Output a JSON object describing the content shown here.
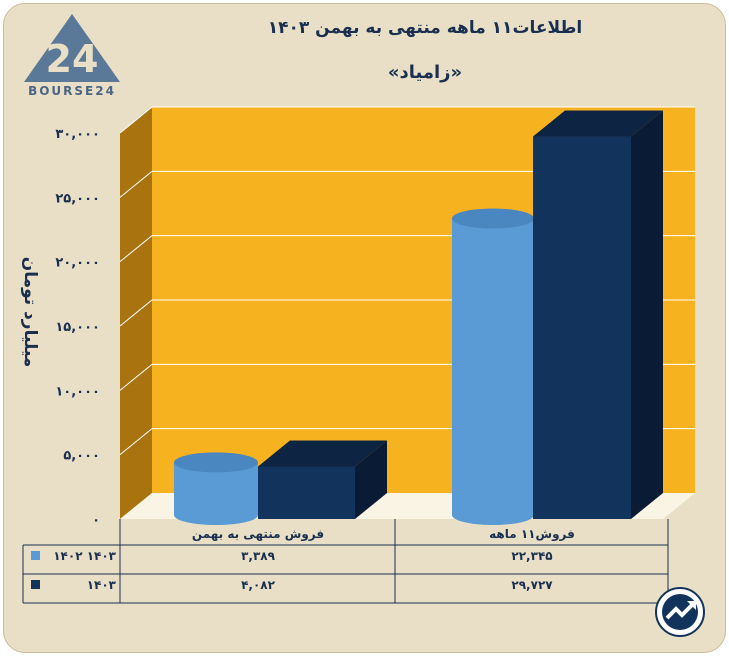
{
  "logo": {
    "text": "BOURSE24",
    "mark": "24"
  },
  "title": "اطلاعات۱۱ ماهه منتهی به بهمن ۱۴۰۳",
  "subtitle": "«زامیاد»",
  "badge_icon": "trend-up-icon",
  "colors": {
    "series_1402": "#5b9bd5",
    "series_1403": "#12345c",
    "plot_back": "#f7b21f",
    "plot_side": "#a97310",
    "plot_floor": "#faf4e4"
  },
  "chart_data": {
    "type": "bar",
    "categories": [
      "فروش منتهی به  بهمن",
      "فروش۱۱  ماهه"
    ],
    "series": [
      {
        "name": "۱۴۰۲ ۱۴۰۳",
        "values": [
          3389,
          22345
        ],
        "labels": [
          "۳,۳۸۹",
          "۲۲,۳۴۵"
        ]
      },
      {
        "name": "۱۴۰۳",
        "values": [
          4082,
          29727
        ],
        "labels": [
          "۴,۰۸۲",
          "۲۹,۷۲۷"
        ]
      }
    ],
    "ylabel": "میلیارد تومان",
    "ylim": [
      0,
      30000
    ],
    "yticks": [
      0,
      5000,
      10000,
      15000,
      20000,
      25000,
      30000
    ],
    "ytick_labels": [
      "۰",
      "۵,۰۰۰",
      "۱۰,۰۰۰",
      "۱۵,۰۰۰",
      "۲۰,۰۰۰",
      "۲۵,۰۰۰",
      "۳۰,۰۰۰"
    ],
    "grid": true,
    "legend": "table-below"
  }
}
